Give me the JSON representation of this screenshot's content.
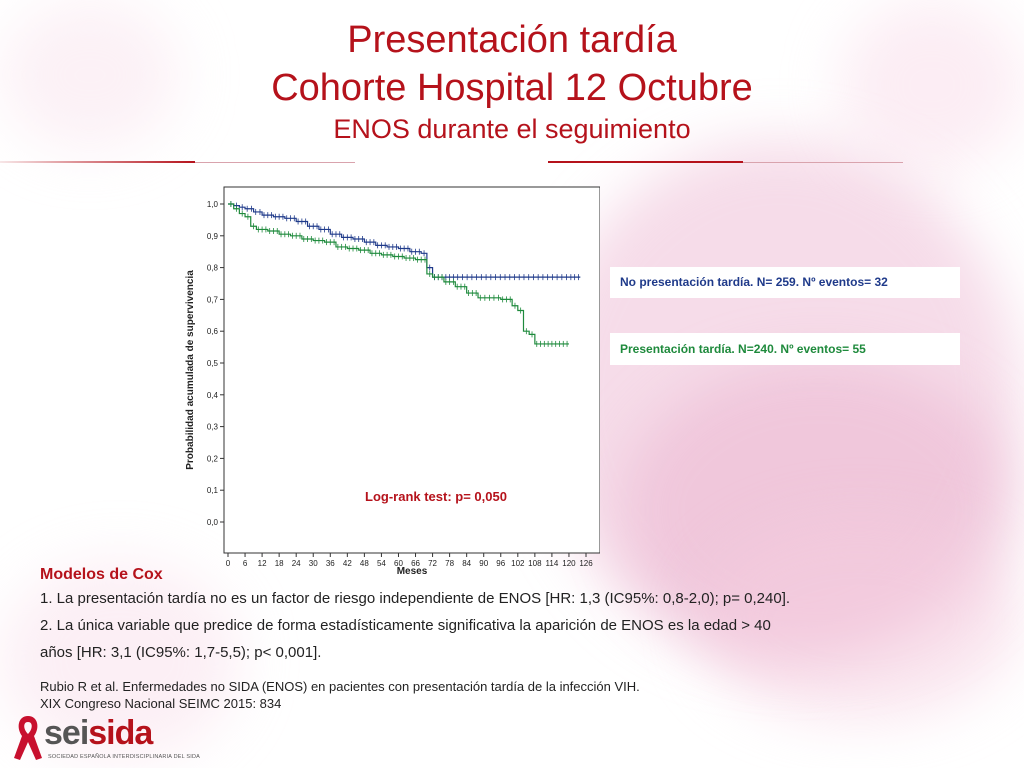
{
  "header": {
    "title_line1": "Presentación tardía",
    "title_line2": "Cohorte Hospital 12 Octubre",
    "subtitle": "ENOS durante el seguimiento"
  },
  "colors": {
    "accent": "#b5121b",
    "series_no": "#1f3a8a",
    "series_si": "#1e8a3c"
  },
  "legend": {
    "no_label": "No presentación tardía. N= 259. Nº eventos= 32",
    "si_label": "Presentación tardía. N=240. Nº eventos= 55"
  },
  "chart_data": {
    "type": "line",
    "title": "",
    "xlabel": "Meses",
    "ylabel": "Probabilidad acumulada de supervivencia",
    "xlim": [
      0,
      126
    ],
    "ylim": [
      0,
      1.0
    ],
    "x_ticks": [
      "0",
      "6",
      "12",
      "18",
      "24",
      "30",
      "36",
      "42",
      "48",
      "54",
      "60",
      "66",
      "72",
      "78",
      "84",
      "90",
      "96",
      "102",
      "108",
      "114",
      "120",
      "126"
    ],
    "y_ticks": [
      "0,0",
      "0,1",
      "0,2",
      "0,3",
      "0,4",
      "0,5",
      "0,6",
      "0,7",
      "0,8",
      "0,9",
      "1,0"
    ],
    "annotation": "Log-rank test: p= 0,050",
    "grid": false,
    "series": [
      {
        "name": "No presentación tardía",
        "color": "#1f3a8a",
        "x": [
          0,
          2,
          4,
          6,
          9,
          12,
          16,
          20,
          24,
          28,
          32,
          36,
          40,
          44,
          48,
          52,
          56,
          60,
          64,
          68,
          70,
          72,
          76,
          80,
          90,
          100,
          110,
          120,
          124
        ],
        "y": [
          1.0,
          0.995,
          0.99,
          0.985,
          0.975,
          0.965,
          0.96,
          0.955,
          0.945,
          0.93,
          0.92,
          0.905,
          0.895,
          0.89,
          0.88,
          0.87,
          0.865,
          0.86,
          0.85,
          0.845,
          0.8,
          0.77,
          0.77,
          0.77,
          0.77,
          0.77,
          0.77,
          0.77,
          0.77
        ]
      },
      {
        "name": "Presentación tardía",
        "color": "#1e8a3c",
        "x": [
          0,
          2,
          4,
          6,
          8,
          10,
          14,
          18,
          22,
          26,
          30,
          34,
          38,
          42,
          46,
          50,
          54,
          58,
          62,
          66,
          70,
          72,
          76,
          80,
          84,
          88,
          96,
          100,
          102,
          104,
          106,
          108,
          112,
          116,
          120
        ],
        "y": [
          1.0,
          0.985,
          0.97,
          0.96,
          0.93,
          0.92,
          0.915,
          0.905,
          0.9,
          0.89,
          0.885,
          0.88,
          0.865,
          0.86,
          0.855,
          0.845,
          0.84,
          0.835,
          0.83,
          0.825,
          0.78,
          0.77,
          0.755,
          0.74,
          0.72,
          0.705,
          0.7,
          0.68,
          0.665,
          0.6,
          0.59,
          0.56,
          0.56,
          0.56,
          0.56
        ]
      }
    ]
  },
  "cox": {
    "title": "Modelos de Cox",
    "line1": "1. La presentación tardía no es un factor de riesgo independiente de ENOS [HR: 1,3 (IC95%: 0,8-2,0); p= 0,240].",
    "line2": "2. La única variable que predice de forma estadísticamente significativa la aparición de ENOS es la edad > 40",
    "line3": "años [HR: 3,1 (IC95%: 1,7-5,5); p< 0,001]."
  },
  "reference": {
    "line1": "Rubio R et al. Enfermedades no SIDA (ENOS) en pacientes con presentación tardía de la infección VIH.",
    "line2": "XIX Congreso Nacional SEIMC 2015: 834"
  },
  "logo": {
    "text_part1": "sei",
    "text_part2": "sida",
    "subtitle": "SOCIEDAD ESPAÑOLA INTERDISCIPLINARIA DEL SIDA",
    "icon": "red-ribbon-icon"
  }
}
